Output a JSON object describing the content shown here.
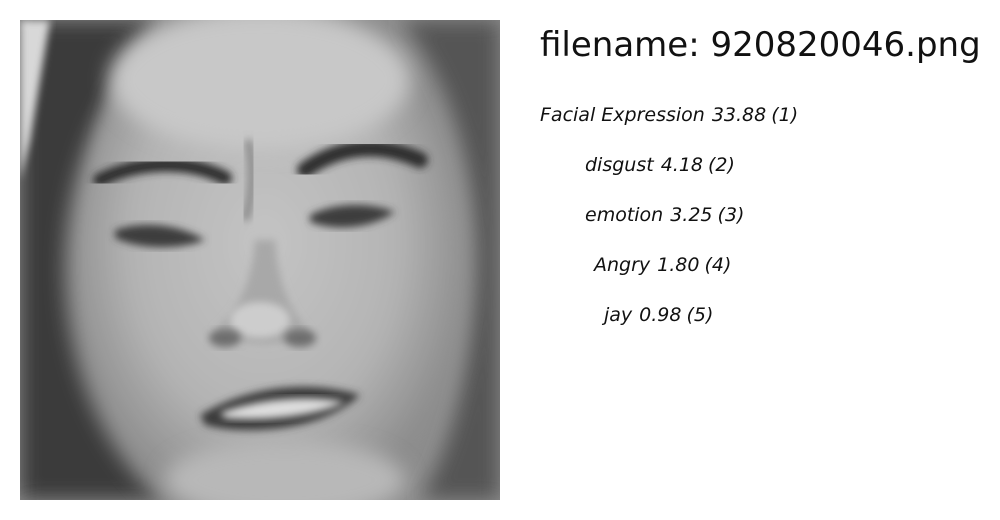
{
  "filename": {
    "prefix": "filename:",
    "value": "920820046.png"
  },
  "image": {
    "subject": "grayscale close-up face photo with a grimacing expression"
  },
  "labels": [
    {
      "label": "Facial Expression",
      "score": "33.88",
      "rank": "(1)"
    },
    {
      "label": "disgust",
      "score": "4.18",
      "rank": "(2)"
    },
    {
      "label": "emotion",
      "score": "3.25",
      "rank": "(3)"
    },
    {
      "label": "Angry",
      "score": "1.80",
      "rank": "(4)"
    },
    {
      "label": "jay",
      "score": "0.98",
      "rank": "(5)"
    }
  ]
}
